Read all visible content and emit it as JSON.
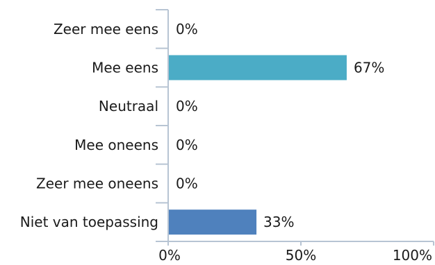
{
  "chart_data": {
    "type": "bar",
    "orientation": "horizontal",
    "categories": [
      "Zeer mee eens",
      "Mee eens",
      "Neutraal",
      "Mee oneens",
      "Zeer mee oneens",
      "Niet van toepassing"
    ],
    "values": [
      0,
      67,
      0,
      0,
      0,
      33
    ],
    "value_labels": [
      "0%",
      "67%",
      "0%",
      "0%",
      "0%",
      "33%"
    ],
    "bar_colors": [
      "#4bacc6",
      "#4bacc6",
      "#4bacc6",
      "#4bacc6",
      "#4bacc6",
      "#4f81bd"
    ],
    "xlim": [
      0,
      100
    ],
    "x_ticks": [
      0,
      50,
      100
    ],
    "x_tick_labels": [
      "0%",
      "50%",
      "100%"
    ],
    "grid": false,
    "legend": "none",
    "axis_color": "#b7c4d3"
  }
}
